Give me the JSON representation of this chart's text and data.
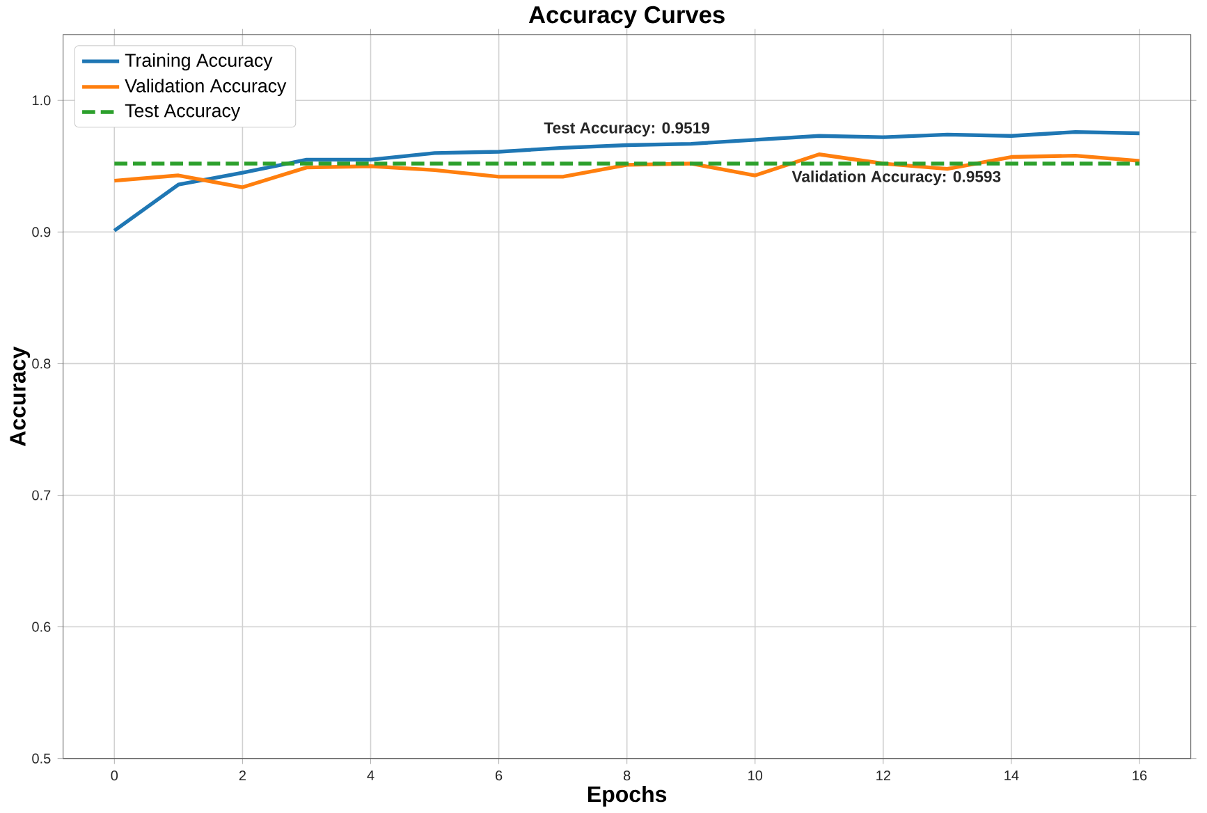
{
  "chart_data": {
    "type": "line",
    "title": "Accuracy Curves",
    "xlabel": "Epochs",
    "ylabel": "Accuracy",
    "x": [
      0,
      1,
      2,
      3,
      4,
      5,
      6,
      7,
      8,
      9,
      10,
      11,
      12,
      13,
      14,
      15,
      16
    ],
    "series": [
      {
        "name": "Training Accuracy",
        "color": "#1f77b4",
        "values": [
          0.901,
          0.936,
          0.945,
          0.955,
          0.955,
          0.96,
          0.961,
          0.964,
          0.966,
          0.967,
          0.97,
          0.973,
          0.972,
          0.974,
          0.973,
          0.976,
          0.975
        ]
      },
      {
        "name": "Validation Accuracy",
        "color": "#ff7f0e",
        "values": [
          0.939,
          0.943,
          0.934,
          0.949,
          0.95,
          0.947,
          0.942,
          0.942,
          0.951,
          0.952,
          0.943,
          0.959,
          0.952,
          0.948,
          0.957,
          0.958,
          0.954
        ]
      },
      {
        "name": "Test Accuracy",
        "color": "#2ca02c",
        "line_style": "dashed",
        "x": [
          0,
          16
        ],
        "values": [
          0.952,
          0.952
        ]
      }
    ],
    "annotations": [
      "Test Accuracy: 0.9519",
      "Validation Accuracy: 0.9593"
    ],
    "xlim": [
      -0.8,
      16.8
    ],
    "ylim": [
      0.5,
      1.05
    ],
    "xticks": [
      0,
      2,
      4,
      6,
      8,
      10,
      12,
      14,
      16
    ],
    "yticks": [
      0.5,
      0.6,
      0.7,
      0.8,
      0.9,
      {
        "value": 1.0,
        "label": "1.0"
      }
    ],
    "grid": true,
    "legend": "top left"
  }
}
